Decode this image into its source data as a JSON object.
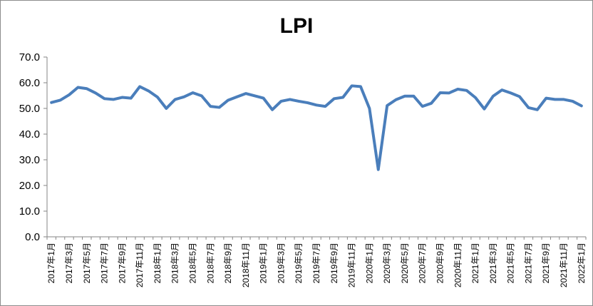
{
  "chart_data": {
    "type": "line",
    "title": "LPI",
    "xlabel": "",
    "ylabel": "",
    "ylim": [
      0,
      70
    ],
    "y_ticks": [
      "0.0",
      "10.0",
      "20.0",
      "30.0",
      "40.0",
      "50.0",
      "60.0",
      "70.0"
    ],
    "grid": false,
    "legend": "none",
    "line_color": "#4a7ebb",
    "x_tick_labels": [
      "2017年1月",
      "2017年3月",
      "2017年5月",
      "2017年7月",
      "2017年9月",
      "2017年11月",
      "2018年1月",
      "2018年3月",
      "2018年5月",
      "2018年7月",
      "2018年9月",
      "2018年11月",
      "2019年1月",
      "2019年3月",
      "2019年5月",
      "2019年7月",
      "2019年9月",
      "2019年11月",
      "2020年1月",
      "2020年3月",
      "2020年5月",
      "2020年7月",
      "2020年9月",
      "2020年11月",
      "2021年1月",
      "2021年3月",
      "2021年5月",
      "2021年7月",
      "2021年9月",
      "2021年11月",
      "2022年1月"
    ],
    "series": [
      {
        "values": [
          52.3,
          53.2,
          55.3,
          58.2,
          57.7,
          56.0,
          53.8,
          53.5,
          54.3,
          54.0,
          58.5,
          56.8,
          54.4,
          50.0,
          53.5,
          54.5,
          56.1,
          54.9,
          50.8,
          50.4,
          53.2,
          54.5,
          55.8,
          54.9,
          54.0,
          49.5,
          52.8,
          53.5,
          52.8,
          52.2,
          51.3,
          50.8,
          53.8,
          54.3,
          58.8,
          58.5,
          50.0,
          26.2,
          51.1,
          53.4,
          54.8,
          54.8,
          50.8,
          52.0,
          56.1,
          56.0,
          57.5,
          57.0,
          54.2,
          49.8,
          54.8,
          57.2,
          56.0,
          54.6,
          50.3,
          49.5,
          54.0,
          53.5,
          53.5,
          52.8,
          51.0
        ]
      }
    ]
  }
}
